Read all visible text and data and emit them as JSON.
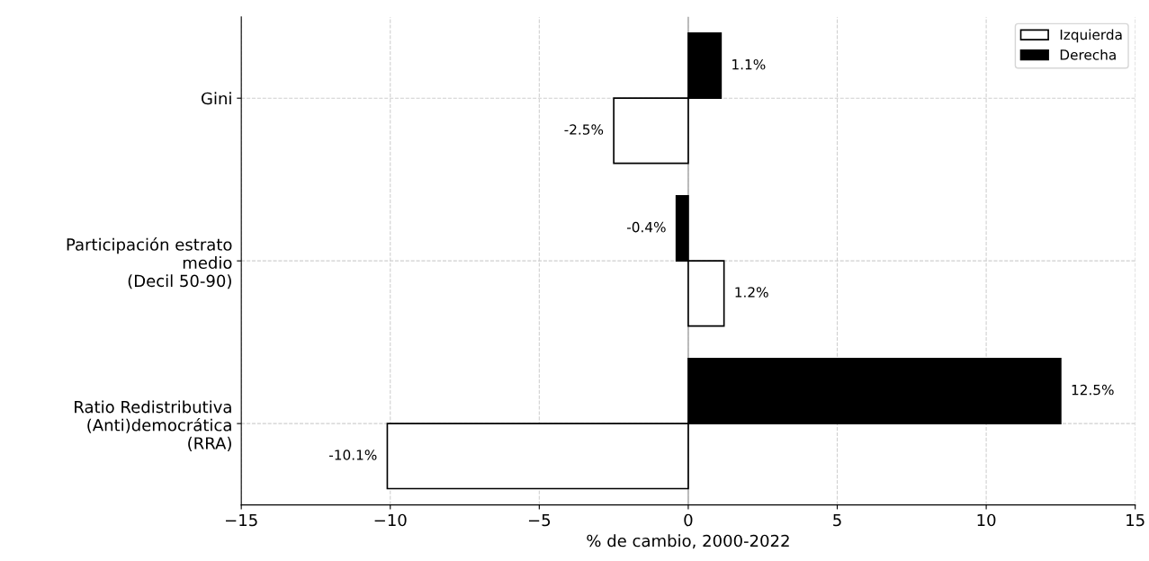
{
  "chart_data": {
    "type": "bar",
    "orientation": "horizontal",
    "xlabel": "% de cambio, 2000-2022",
    "categories": [
      "Gini",
      "Participación estrato\nmedio\n(Decil 50-90)",
      "Ratio Redistributiva\n(Anti)democrática\n(RRA)"
    ],
    "series": [
      {
        "name": "Izquierda",
        "color": "#ffffff",
        "values": [
          -2.5,
          1.2,
          -10.1
        ],
        "value_labels": [
          "-2.5%",
          "1.2%",
          "-10.1%"
        ]
      },
      {
        "name": "Derecha",
        "color": "#000000",
        "values": [
          1.1,
          -0.4,
          12.5
        ],
        "value_labels": [
          "1.1%",
          "-0.4%",
          "12.5%"
        ]
      }
    ],
    "xlim": [
      -15,
      15
    ],
    "xticks": [
      {
        "value": -15,
        "label": "−15"
      },
      {
        "value": -10,
        "label": "−10"
      },
      {
        "value": -5,
        "label": "−5"
      },
      0,
      5,
      10,
      15
    ],
    "ref_lines": [
      {
        "axis": "x",
        "value": 0,
        "color": "#b0b0b0"
      }
    ],
    "grid": true,
    "legend": "top right"
  }
}
